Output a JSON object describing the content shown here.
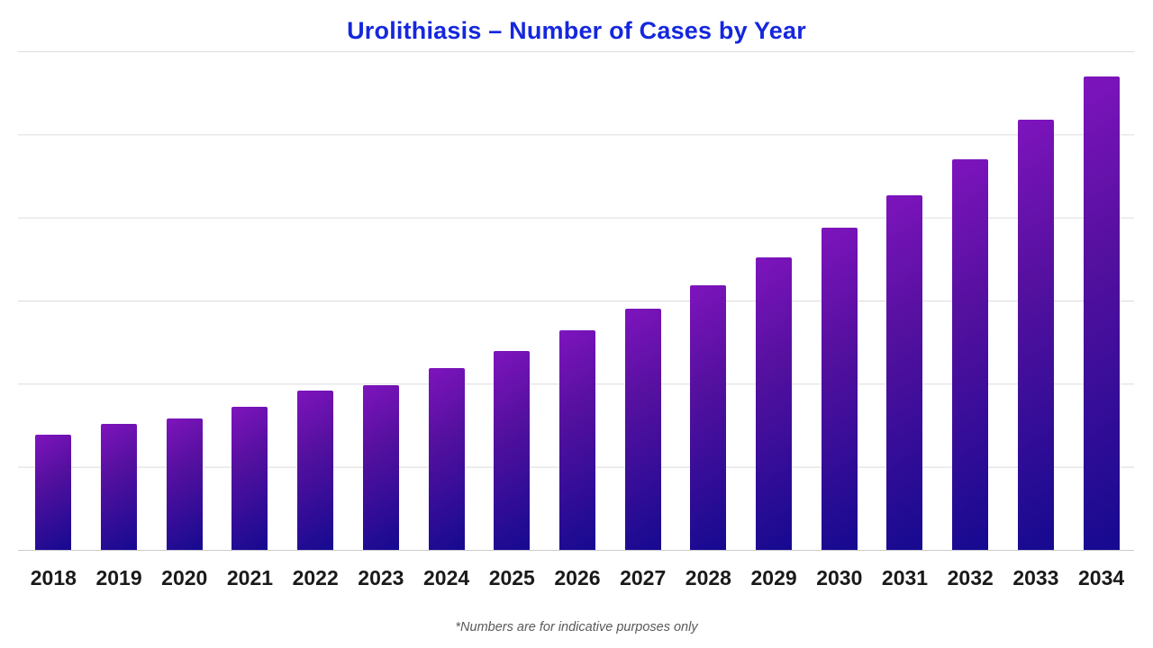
{
  "title": {
    "text": "Urolithiasis – Number of Cases by Year"
  },
  "footnote": "*Numbers are for indicative purposes only",
  "theme": {
    "background": "#ffffff",
    "title_color": "#1527dd",
    "bar_gradient_top": "#7e14bd",
    "bar_gradient_mid": "#55109f",
    "bar_gradient_bottom": "#150a90",
    "gridline_color": "#dcdcdc",
    "axis_line_color": "#cccccc",
    "x_label_color": "#1a1a1a",
    "footnote_color": "#595959"
  },
  "chart_data": {
    "type": "bar",
    "title": "Urolithiasis – Number of Cases by Year",
    "categories": [
      "2018",
      "2019",
      "2020",
      "2021",
      "2022",
      "2023",
      "2024",
      "2025",
      "2026",
      "2027",
      "2028",
      "2029",
      "2030",
      "2031",
      "2032",
      "2033",
      "2034"
    ],
    "values": [
      139,
      152,
      158,
      172,
      192,
      198,
      219,
      239,
      264,
      290,
      318,
      352,
      388,
      427,
      470,
      518,
      570
    ],
    "xlabel": "",
    "ylabel": "",
    "ylim": [
      0,
      600
    ],
    "gridline_interval": 100,
    "y_axis_tick_labels_visible": false,
    "grid": "horizontal",
    "legend": "none",
    "units_note": "y-axis is unlabeled in the image; values are relative units estimated from gridline spacing (1 gridline = 100)"
  }
}
